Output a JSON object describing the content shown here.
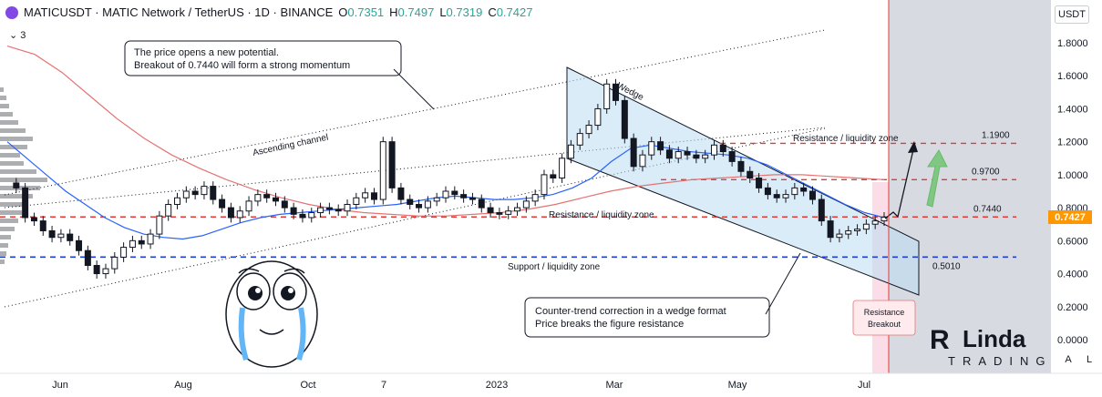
{
  "header": {
    "symbol_line": "MATICUSDT · MATIC Network / TetherUS · 1D · BINANCE",
    "open_label": "O",
    "open": "0.7351",
    "high_label": "H",
    "high": "0.7497",
    "low_label": "L",
    "low": "0.7319",
    "close_label": "C",
    "close": "0.7427"
  },
  "indicator_toggle": "3",
  "currency_button": "USDT",
  "scale_buttons": {
    "auto": "A",
    "log": "L"
  },
  "colors": {
    "price_line": "#e53935",
    "ma_blue": "#2962ff",
    "ma_red": "#e57373",
    "support_line": "#1e40d6",
    "wedge_fill": "#bcdcf2",
    "arrow_green": "#81c784",
    "last_price_badge": "#ff9800",
    "future_zone": "#d1d4dc"
  },
  "chart_data": {
    "type": "candlestick",
    "y_axis": {
      "min": 0.0,
      "max": 1.9,
      "ticks": [
        "1.8000",
        "1.6000",
        "1.4000",
        "1.2000",
        "1.0000",
        "0.8000",
        "0.6000",
        "0.4000",
        "0.2000",
        "0.0000"
      ]
    },
    "x_axis": {
      "labels": [
        "Jun",
        "Aug",
        "Oct",
        "7",
        "2023",
        "Mar",
        "May",
        "Jul"
      ]
    },
    "last_price": "0.7427",
    "levels": [
      {
        "value": 1.19,
        "label": "1.1900",
        "style": "red-dashed"
      },
      {
        "value": 0.97,
        "label": "0.9700",
        "style": "red-dashed"
      },
      {
        "value": 0.744,
        "label": "0.7440",
        "style": "red-dashed"
      },
      {
        "value": 0.501,
        "label": "0.5010",
        "style": "blue-dashed"
      }
    ],
    "close_series": [
      0.95,
      0.92,
      0.74,
      0.72,
      0.66,
      0.62,
      0.64,
      0.6,
      0.54,
      0.45,
      0.4,
      0.43,
      0.5,
      0.56,
      0.6,
      0.58,
      0.64,
      0.75,
      0.82,
      0.86,
      0.9,
      0.88,
      0.93,
      0.85,
      0.8,
      0.74,
      0.78,
      0.84,
      0.88,
      0.86,
      0.84,
      0.8,
      0.76,
      0.74,
      0.77,
      0.8,
      0.79,
      0.78,
      0.82,
      0.86,
      0.89,
      0.85,
      1.2,
      0.92,
      0.85,
      0.82,
      0.8,
      0.84,
      0.86,
      0.9,
      0.88,
      0.86,
      0.85,
      0.8,
      0.77,
      0.76,
      0.78,
      0.8,
      0.84,
      0.88,
      1.0,
      0.98,
      1.1,
      1.18,
      1.25,
      1.3,
      1.4,
      1.55,
      1.45,
      1.22,
      1.05,
      1.12,
      1.2,
      1.15,
      1.1,
      1.14,
      1.12,
      1.1,
      1.12,
      1.18,
      1.14,
      1.08,
      1.02,
      0.98,
      0.92,
      0.88,
      0.86,
      0.88,
      0.92,
      0.9,
      0.85,
      0.72,
      0.62,
      0.64,
      0.66,
      0.67,
      0.7,
      0.72,
      0.7427
    ],
    "ma_blue_series": [
      1.2,
      1.1,
      1.0,
      0.9,
      0.82,
      0.74,
      0.68,
      0.64,
      0.62,
      0.61,
      0.63,
      0.67,
      0.71,
      0.74,
      0.76,
      0.77,
      0.78,
      0.79,
      0.8,
      0.81,
      0.82,
      0.84,
      0.86,
      0.87,
      0.86,
      0.85,
      0.85,
      0.86,
      0.88,
      0.92,
      0.98,
      1.08,
      1.16,
      1.18,
      1.16,
      1.14,
      1.13,
      1.12,
      1.1,
      1.06,
      1.0,
      0.94,
      0.88,
      0.82,
      0.77,
      0.74
    ],
    "ma_red_series": [
      1.78,
      1.73,
      1.62,
      1.48,
      1.34,
      1.22,
      1.12,
      1.04,
      0.97,
      0.91,
      0.86,
      0.82,
      0.79,
      0.77,
      0.76,
      0.75,
      0.75,
      0.76,
      0.77,
      0.79,
      0.82,
      0.86,
      0.9,
      0.93,
      0.95,
      0.97,
      0.98,
      0.99,
      1.0,
      1.0,
      0.99,
      0.98,
      0.97
    ],
    "annotations": {
      "callout_top_1": "The price opens a new potential.",
      "callout_top_2": "Breakout of 0.7440 will form a strong momentum",
      "callout_bottom_1": "Counter-trend correction in a wedge format",
      "callout_bottom_2": "Price breaks the figure resistance",
      "ascending_channel": "Ascending channel",
      "wedge": "Wedge",
      "resistance_zone_upper": "Resistance / liquidity zone",
      "resistance_zone_lower": "Resistance / liquidity zone",
      "support_zone": "Support / liquidity zone",
      "resistance_breakout_1": "Resistance",
      "resistance_breakout_2": "Breakout"
    },
    "watermark": {
      "word1": "Linda",
      "word2": "TRADING"
    }
  }
}
